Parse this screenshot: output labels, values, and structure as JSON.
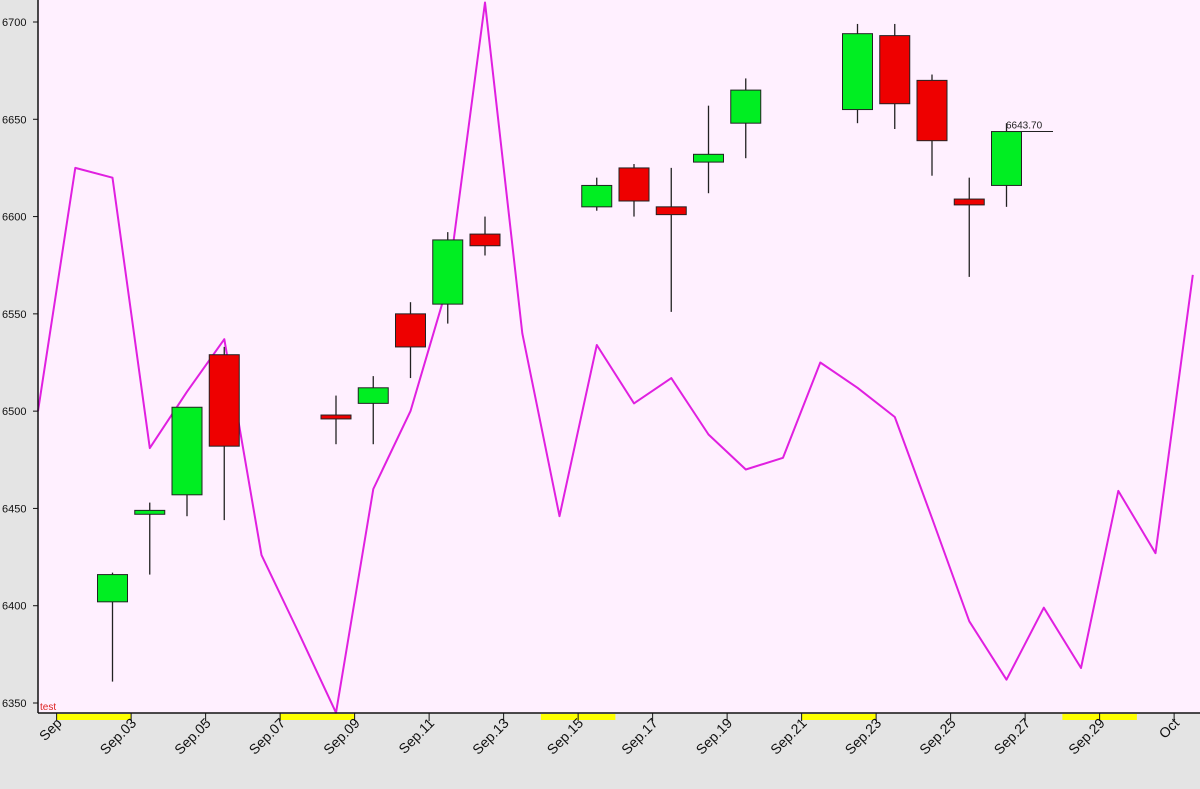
{
  "chart_data": {
    "type": "candlestick",
    "title": "",
    "xlabel": "",
    "ylabel": "",
    "ylim": [
      6350,
      6710
    ],
    "y_ticks": [
      6350,
      6400,
      6450,
      6500,
      6550,
      6600,
      6650,
      6700
    ],
    "grid": false,
    "x_tick_labels": [
      "Sep",
      "Sep.03",
      "Sep.05",
      "Sep.07",
      "Sep.09",
      "Sep.11",
      "Sep.13",
      "Sep.15",
      "Sep.17",
      "Sep.19",
      "Sep.21",
      "Sep.23",
      "Sep.25",
      "Sep.27",
      "Sep.29",
      "Oct"
    ],
    "candles": [
      {
        "day": 2,
        "open": 6402,
        "high": 6417,
        "low": 6361,
        "close": 6416
      },
      {
        "day": 3,
        "open": 6447,
        "high": 6453,
        "low": 6416,
        "close": 6449
      },
      {
        "day": 4,
        "open": 6457,
        "high": 6502,
        "low": 6446,
        "close": 6502
      },
      {
        "day": 5,
        "open": 6529,
        "high": 6533,
        "low": 6444,
        "close": 6482
      },
      {
        "day": 8,
        "open": 6498,
        "high": 6508,
        "low": 6483,
        "close": 6496
      },
      {
        "day": 9,
        "open": 6504,
        "high": 6518,
        "low": 6483,
        "close": 6512
      },
      {
        "day": 10,
        "open": 6550,
        "high": 6556,
        "low": 6517,
        "close": 6533
      },
      {
        "day": 11,
        "open": 6555,
        "high": 6592,
        "low": 6545,
        "close": 6588
      },
      {
        "day": 12,
        "open": 6591,
        "high": 6600,
        "low": 6580,
        "close": 6585
      },
      {
        "day": 15,
        "open": 6605,
        "high": 6620,
        "low": 6603,
        "close": 6616
      },
      {
        "day": 16,
        "open": 6625,
        "high": 6627,
        "low": 6600,
        "close": 6608
      },
      {
        "day": 17,
        "open": 6605,
        "high": 6625,
        "low": 6551,
        "close": 6601
      },
      {
        "day": 18,
        "open": 6628,
        "high": 6657,
        "low": 6612,
        "close": 6632
      },
      {
        "day": 19,
        "open": 6648,
        "high": 6671,
        "low": 6630,
        "close": 6665
      },
      {
        "day": 22,
        "open": 6655,
        "high": 6699,
        "low": 6648,
        "close": 6694
      },
      {
        "day": 23,
        "open": 6693,
        "high": 6699,
        "low": 6645,
        "close": 6658
      },
      {
        "day": 24,
        "open": 6670,
        "high": 6673,
        "low": 6621,
        "close": 6639
      },
      {
        "day": 25,
        "open": 6609,
        "high": 6620,
        "low": 6569,
        "close": 6606
      },
      {
        "day": 26,
        "open": 6616,
        "high": 6648,
        "low": 6605,
        "close": 6643.7
      }
    ],
    "line_series": {
      "color": "#e020e0",
      "x": [
        0,
        1,
        2,
        3,
        4,
        5,
        6,
        7,
        8,
        9,
        10,
        11,
        12,
        13,
        14,
        15,
        16,
        17,
        18,
        19,
        20,
        21,
        22,
        23,
        24,
        25,
        26,
        27,
        28,
        29,
        30,
        31
      ],
      "y": [
        6500,
        6625,
        6620,
        6481,
        6510,
        6537,
        6426,
        6386,
        6345,
        6460,
        6500,
        6565,
        6710,
        6540,
        6446,
        6534,
        6504,
        6517,
        6488,
        6470,
        6476,
        6525,
        6512,
        6497,
        6445,
        6392,
        6362,
        6399,
        6368,
        6459,
        6427,
        6570
      ]
    },
    "last_price_label": "6643.70",
    "series_label": "test",
    "colors": {
      "plot_background": "#fff0ff",
      "bullish": "#00ee22",
      "bearish": "#ee0000",
      "weekend_marker": "#ffff00",
      "series_label": "#dd2222"
    }
  }
}
